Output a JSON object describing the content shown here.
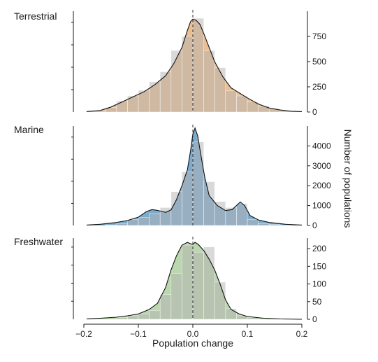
{
  "figure": {
    "xlabel": "Population change",
    "ylabel": "Number of populations",
    "x_ticks": [
      "−0.2",
      "−0.1",
      "0.0",
      "0.1",
      "0.2"
    ],
    "colors": {
      "Terrestrial": "#e8b887",
      "Marine": "#6ea2c9",
      "Freshwater": "#b2d3a4",
      "histogram": "#b4b4b4",
      "density_line": "#111111",
      "zero_line": "#333333"
    }
  },
  "chart_data": [
    {
      "type": "bar",
      "title": "Terrestrial",
      "xlim": [
        -0.2,
        0.2
      ],
      "ylim": [
        0,
        1000
      ],
      "y_ticks": [
        "0",
        "250",
        "500",
        "750"
      ],
      "bin_width": 0.02,
      "bins": [
        {
          "x0": -0.2,
          "count": 0
        },
        {
          "x0": -0.18,
          "count": 10
        },
        {
          "x0": -0.16,
          "count": 45
        },
        {
          "x0": -0.14,
          "count": 110
        },
        {
          "x0": -0.12,
          "count": 160
        },
        {
          "x0": -0.1,
          "count": 215
        },
        {
          "x0": -0.08,
          "count": 300
        },
        {
          "x0": -0.06,
          "count": 400
        },
        {
          "x0": -0.04,
          "count": 610
        },
        {
          "x0": -0.02,
          "count": 750
        },
        {
          "x0": 0.0,
          "count": 930
        },
        {
          "x0": 0.02,
          "count": 610
        },
        {
          "x0": 0.04,
          "count": 440
        },
        {
          "x0": 0.06,
          "count": 210
        },
        {
          "x0": 0.08,
          "count": 160
        },
        {
          "x0": 0.1,
          "count": 100
        },
        {
          "x0": 0.12,
          "count": 60
        },
        {
          "x0": 0.14,
          "count": 30
        },
        {
          "x0": 0.16,
          "count": 10
        },
        {
          "x0": 0.18,
          "count": 0
        }
      ],
      "density": [
        [
          -0.195,
          5
        ],
        [
          -0.17,
          15
        ],
        [
          -0.15,
          50
        ],
        [
          -0.13,
          100
        ],
        [
          -0.11,
          150
        ],
        [
          -0.09,
          200
        ],
        [
          -0.07,
          270
        ],
        [
          -0.05,
          360
        ],
        [
          -0.035,
          480
        ],
        [
          -0.02,
          640
        ],
        [
          -0.01,
          810
        ],
        [
          -0.004,
          900
        ],
        [
          0.0,
          920
        ],
        [
          0.006,
          910
        ],
        [
          0.013,
          870
        ],
        [
          0.02,
          780
        ],
        [
          0.03,
          640
        ],
        [
          0.04,
          500
        ],
        [
          0.055,
          350
        ],
        [
          0.07,
          240
        ],
        [
          0.085,
          190
        ],
        [
          0.1,
          140
        ],
        [
          0.12,
          80
        ],
        [
          0.14,
          40
        ],
        [
          0.16,
          20
        ],
        [
          0.18,
          8
        ],
        [
          0.2,
          4
        ]
      ]
    },
    {
      "type": "bar",
      "title": "Marine",
      "xlim": [
        -0.2,
        0.2
      ],
      "ylim": [
        0,
        5000
      ],
      "y_ticks": [
        "0",
        "1000",
        "2000",
        "3000",
        "4000"
      ],
      "bin_width": 0.02,
      "bins": [
        {
          "x0": -0.2,
          "count": 0
        },
        {
          "x0": -0.18,
          "count": 0
        },
        {
          "x0": -0.16,
          "count": 20
        },
        {
          "x0": -0.14,
          "count": 100
        },
        {
          "x0": -0.12,
          "count": 300
        },
        {
          "x0": -0.1,
          "count": 400
        },
        {
          "x0": -0.08,
          "count": 600
        },
        {
          "x0": -0.06,
          "count": 900
        },
        {
          "x0": -0.04,
          "count": 1700
        },
        {
          "x0": -0.02,
          "count": 2700
        },
        {
          "x0": 0.0,
          "count": 4200
        },
        {
          "x0": 0.02,
          "count": 2200
        },
        {
          "x0": 0.04,
          "count": 1200
        },
        {
          "x0": 0.06,
          "count": 900
        },
        {
          "x0": 0.08,
          "count": 1100
        },
        {
          "x0": 0.1,
          "count": 300
        },
        {
          "x0": 0.12,
          "count": 100
        },
        {
          "x0": 0.14,
          "count": 50
        },
        {
          "x0": 0.16,
          "count": 10
        },
        {
          "x0": 0.18,
          "count": 0
        }
      ],
      "density": [
        [
          -0.195,
          20
        ],
        [
          -0.17,
          60
        ],
        [
          -0.14,
          150
        ],
        [
          -0.12,
          250
        ],
        [
          -0.1,
          420
        ],
        [
          -0.085,
          700
        ],
        [
          -0.075,
          800
        ],
        [
          -0.065,
          760
        ],
        [
          -0.05,
          660
        ],
        [
          -0.04,
          780
        ],
        [
          -0.03,
          1300
        ],
        [
          -0.02,
          2000
        ],
        [
          -0.01,
          2800
        ],
        [
          -0.004,
          3800
        ],
        [
          0.0,
          4600
        ],
        [
          0.004,
          4900
        ],
        [
          0.009,
          4500
        ],
        [
          0.015,
          3500
        ],
        [
          0.022,
          2400
        ],
        [
          0.03,
          1500
        ],
        [
          0.045,
          1000
        ],
        [
          0.06,
          750
        ],
        [
          0.072,
          800
        ],
        [
          0.08,
          1000
        ],
        [
          0.087,
          1180
        ],
        [
          0.095,
          1000
        ],
        [
          0.105,
          500
        ],
        [
          0.12,
          280
        ],
        [
          0.14,
          150
        ],
        [
          0.17,
          60
        ],
        [
          0.2,
          20
        ]
      ]
    },
    {
      "type": "bar",
      "title": "Freshwater",
      "xlim": [
        -0.2,
        0.2
      ],
      "ylim": [
        0,
        230
      ],
      "y_ticks": [
        "0",
        "50",
        "100",
        "150",
        "200"
      ],
      "bin_width": 0.02,
      "bins": [
        {
          "x0": -0.2,
          "count": 0
        },
        {
          "x0": -0.18,
          "count": 0
        },
        {
          "x0": -0.16,
          "count": 0
        },
        {
          "x0": -0.14,
          "count": 5
        },
        {
          "x0": -0.12,
          "count": 10
        },
        {
          "x0": -0.1,
          "count": 15
        },
        {
          "x0": -0.08,
          "count": 25
        },
        {
          "x0": -0.06,
          "count": 70
        },
        {
          "x0": -0.04,
          "count": 130
        },
        {
          "x0": -0.02,
          "count": 210
        },
        {
          "x0": 0.0,
          "count": 190
        },
        {
          "x0": 0.02,
          "count": 205
        },
        {
          "x0": 0.04,
          "count": 105
        },
        {
          "x0": 0.06,
          "count": 30
        },
        {
          "x0": 0.08,
          "count": 10
        },
        {
          "x0": 0.1,
          "count": 5
        },
        {
          "x0": 0.12,
          "count": 0
        },
        {
          "x0": 0.14,
          "count": 0
        },
        {
          "x0": 0.16,
          "count": 0
        },
        {
          "x0": 0.18,
          "count": 0
        }
      ],
      "density": [
        [
          -0.195,
          1
        ],
        [
          -0.17,
          3
        ],
        [
          -0.14,
          6
        ],
        [
          -0.12,
          10
        ],
        [
          -0.1,
          15
        ],
        [
          -0.08,
          28
        ],
        [
          -0.065,
          45
        ],
        [
          -0.05,
          90
        ],
        [
          -0.04,
          140
        ],
        [
          -0.03,
          180
        ],
        [
          -0.02,
          210
        ],
        [
          -0.01,
          218
        ],
        [
          -0.004,
          214
        ],
        [
          0.0,
          212
        ],
        [
          0.004,
          218
        ],
        [
          0.01,
          212
        ],
        [
          0.02,
          195
        ],
        [
          0.03,
          170
        ],
        [
          0.04,
          140
        ],
        [
          0.05,
          100
        ],
        [
          0.06,
          55
        ],
        [
          0.07,
          28
        ],
        [
          0.085,
          15
        ],
        [
          0.1,
          8
        ],
        [
          0.13,
          3
        ],
        [
          0.16,
          1
        ],
        [
          0.2,
          0
        ]
      ]
    }
  ]
}
